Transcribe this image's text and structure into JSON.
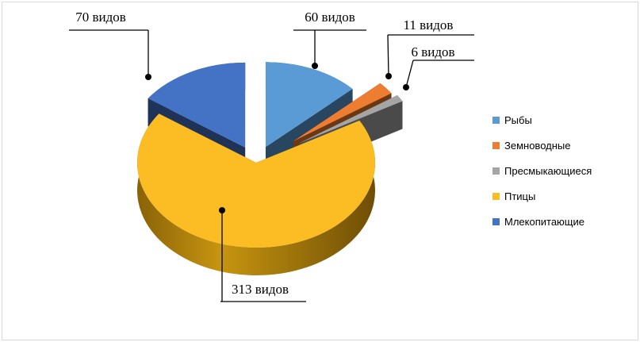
{
  "chart_data": {
    "type": "pie",
    "title": "",
    "exploded": true,
    "three_d": true,
    "legend_position": "right",
    "slices": [
      {
        "name": "Рыбы",
        "value": 60,
        "label": "60 видов",
        "color": "#5b9bd5"
      },
      {
        "name": "Земноводные",
        "value": 11,
        "label": "11 видов",
        "color": "#ed7d31"
      },
      {
        "name": "Пресмыкающиеся",
        "value": 6,
        "label": "6 видов",
        "color": "#a5a5a5"
      },
      {
        "name": "Птицы",
        "value": 313,
        "label": "313 видов",
        "color": "#fbbc24"
      },
      {
        "name": "Млекопитающие",
        "value": 70,
        "label": "70 видов",
        "color": "#4472c4"
      }
    ]
  }
}
